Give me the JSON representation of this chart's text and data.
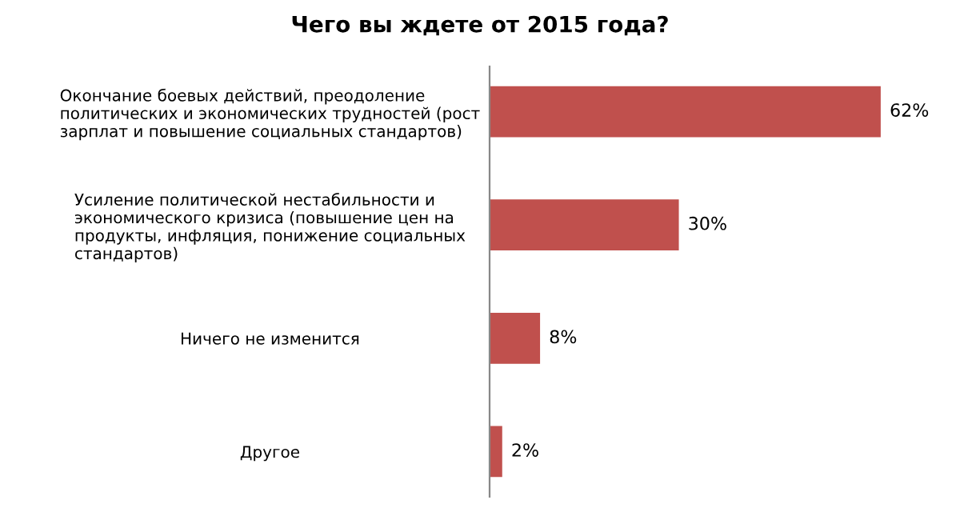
{
  "chart_data": {
    "type": "bar",
    "orientation": "horizontal",
    "title": "Чего вы ждете от 2015 года?",
    "categories": [
      "Окончание боевых действий, преодоление\nполитических и экономических трудностей (рост\nзарплат и повышение социальных стандартов)",
      "Усиление политической нестабильности и\nэкономического кризиса (повышение цен на\nпродукты, инфляция, понижение социальных\nстандартов)",
      "Ничего не изменится",
      "Другое"
    ],
    "values": [
      62,
      30,
      8,
      2
    ],
    "value_labels": [
      "62%",
      "30%",
      "8%",
      "2%"
    ],
    "color": "#c0504d",
    "grid": false,
    "legend": false
  }
}
